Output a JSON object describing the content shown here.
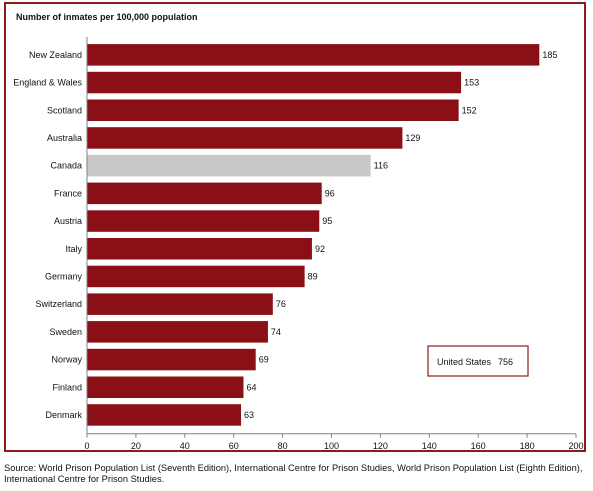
{
  "chart_data": {
    "type": "bar",
    "orientation": "horizontal",
    "title": "Number of inmates per 100,000 population",
    "xlabel": "",
    "ylabel": "",
    "xlim": [
      0,
      200
    ],
    "x_ticks": [
      0,
      20,
      40,
      60,
      80,
      100,
      120,
      140,
      160,
      180,
      200
    ],
    "grid": false,
    "categories": [
      "New Zealand",
      "England & Wales",
      "Scotland",
      "Australia",
      "Canada",
      "France",
      "Austria",
      "Italy",
      "Germany",
      "Switzerland",
      "Sweden",
      "Norway",
      "Finland",
      "Denmark"
    ],
    "values": [
      185,
      153,
      152,
      129,
      116,
      96,
      95,
      92,
      89,
      76,
      74,
      69,
      64,
      63
    ],
    "highlight_category": "Canada",
    "colors": {
      "bar": "#8b0f17",
      "highlight": "#c8c8c8",
      "frame": "#8e1b1b"
    },
    "inset": {
      "label": "United States",
      "value": "756"
    }
  },
  "source": "Source:  World Prison Population List (Seventh Edition), International Centre for Prison Studies, World Prison Population List (Eighth Edition), International Centre for Prison Studies."
}
